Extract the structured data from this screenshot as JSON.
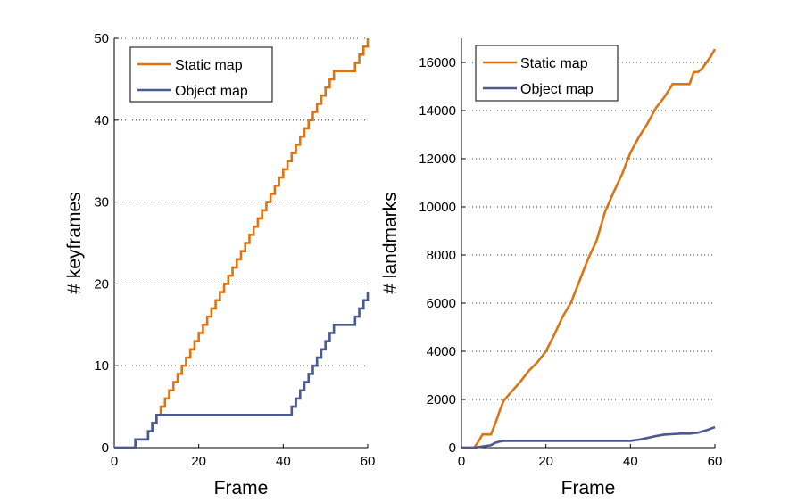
{
  "colors": {
    "static_map": "#d97514",
    "object_map": "#4a5990",
    "grid": "#000000",
    "axis": "#000000"
  },
  "chart_data": [
    {
      "type": "line",
      "step": true,
      "xlabel": "Frame",
      "ylabel": "# keyframes",
      "xlim": [
        0,
        60
      ],
      "ylim": [
        0,
        50
      ],
      "xticks": [
        0,
        20,
        40,
        60
      ],
      "yticks": [
        0,
        10,
        20,
        30,
        40,
        50
      ],
      "grid": "y-dotted",
      "legend_position": "top-left",
      "series": [
        {
          "name": "Static map",
          "color_key": "static_map",
          "x": [
            0,
            1,
            2,
            3,
            4,
            5,
            6,
            7,
            8,
            9,
            10,
            11,
            12,
            13,
            14,
            15,
            16,
            17,
            18,
            19,
            20,
            21,
            22,
            23,
            24,
            25,
            26,
            27,
            28,
            29,
            30,
            31,
            32,
            33,
            34,
            35,
            36,
            37,
            38,
            39,
            40,
            41,
            42,
            43,
            44,
            45,
            46,
            47,
            48,
            49,
            50,
            51,
            52,
            53,
            54,
            55,
            56,
            57,
            58,
            59,
            60
          ],
          "y": [
            0,
            0,
            0,
            0,
            0,
            1,
            1,
            1,
            2,
            3,
            4,
            5,
            6,
            7,
            8,
            9,
            10,
            11,
            12,
            13,
            14,
            15,
            16,
            17,
            18,
            19,
            20,
            21,
            22,
            23,
            24,
            25,
            26,
            27,
            28,
            29,
            30,
            31,
            32,
            33,
            34,
            35,
            36,
            37,
            38,
            39,
            40,
            41,
            42,
            43,
            44,
            45,
            46,
            46,
            46,
            46,
            46,
            47,
            48,
            49,
            50
          ]
        },
        {
          "name": "Object map",
          "color_key": "object_map",
          "x": [
            0,
            1,
            2,
            3,
            4,
            5,
            6,
            7,
            8,
            9,
            10,
            11,
            12,
            13,
            14,
            15,
            16,
            17,
            18,
            19,
            20,
            21,
            22,
            23,
            24,
            25,
            26,
            27,
            28,
            29,
            30,
            31,
            32,
            33,
            34,
            35,
            36,
            37,
            38,
            39,
            40,
            41,
            42,
            43,
            44,
            45,
            46,
            47,
            48,
            49,
            50,
            51,
            52,
            53,
            54,
            55,
            56,
            57,
            58,
            59,
            60
          ],
          "y": [
            0,
            0,
            0,
            0,
            0,
            1,
            1,
            1,
            2,
            3,
            4,
            4,
            4,
            4,
            4,
            4,
            4,
            4,
            4,
            4,
            4,
            4,
            4,
            4,
            4,
            4,
            4,
            4,
            4,
            4,
            4,
            4,
            4,
            4,
            4,
            4,
            4,
            4,
            4,
            4,
            4,
            4,
            5,
            6,
            7,
            8,
            9,
            10,
            11,
            12,
            13,
            14,
            15,
            15,
            15,
            15,
            15,
            16,
            17,
            18,
            19
          ]
        }
      ]
    },
    {
      "type": "line",
      "step": false,
      "xlabel": "Frame",
      "ylabel": "# landmarks",
      "xlim": [
        0,
        60
      ],
      "ylim": [
        0,
        17000
      ],
      "xticks": [
        0,
        20,
        40,
        60
      ],
      "yticks": [
        0,
        2000,
        4000,
        6000,
        8000,
        10000,
        12000,
        14000,
        16000
      ],
      "grid": "y-dotted",
      "legend_position": "top-left",
      "series": [
        {
          "name": "Static map",
          "color_key": "static_map",
          "x": [
            0,
            3,
            4,
            5,
            6,
            7,
            8,
            9,
            10,
            12,
            14,
            16,
            18,
            20,
            22,
            24,
            26,
            28,
            30,
            32,
            34,
            36,
            38,
            40,
            42,
            44,
            46,
            48,
            50,
            52,
            54,
            55,
            56,
            57,
            58,
            59,
            60
          ],
          "y": [
            0,
            0,
            250,
            550,
            550,
            550,
            1000,
            1500,
            1950,
            2350,
            2750,
            3200,
            3550,
            4000,
            4700,
            5450,
            6050,
            6950,
            7850,
            8600,
            9800,
            10600,
            11350,
            12250,
            12900,
            13450,
            14100,
            14550,
            15100,
            15100,
            15100,
            15600,
            15600,
            15750,
            16000,
            16250,
            16550
          ]
        },
        {
          "name": "Object map",
          "color_key": "object_map",
          "x": [
            0,
            3,
            5,
            7,
            8,
            9,
            10,
            20,
            30,
            40,
            42,
            44,
            46,
            48,
            50,
            52,
            54,
            56,
            58,
            60
          ],
          "y": [
            0,
            0,
            50,
            100,
            200,
            250,
            280,
            280,
            280,
            280,
            330,
            400,
            480,
            540,
            560,
            580,
            580,
            620,
            720,
            850
          ]
        }
      ]
    }
  ]
}
